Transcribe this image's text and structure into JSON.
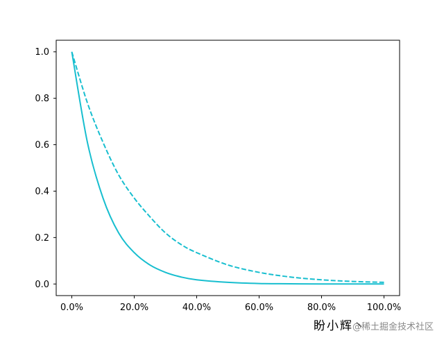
{
  "chart_data": {
    "type": "line",
    "title": "",
    "xlabel": "",
    "ylabel": "",
    "xlim": [
      -0.05,
      1.05
    ],
    "ylim": [
      -0.05,
      1.05
    ],
    "x_ticks": [
      0,
      0.2,
      0.4,
      0.6,
      0.8,
      1.0
    ],
    "x_tick_labels": [
      "0.0%",
      "20.0%",
      "40.0%",
      "60.0%",
      "80.0%",
      "100.0%"
    ],
    "y_ticks": [
      0,
      0.2,
      0.4,
      0.6,
      0.8,
      1.0
    ],
    "y_tick_labels": [
      "0.0",
      "0.2",
      "0.4",
      "0.6",
      "0.8",
      "1.0"
    ],
    "grid": false,
    "legend": "none",
    "color": "#17becf",
    "series": [
      {
        "style": "solid",
        "x": [
          0,
          0.05,
          0.1,
          0.15,
          0.2,
          0.25,
          0.3,
          0.35,
          0.4,
          0.5,
          0.6,
          0.7,
          0.8,
          0.9,
          1.0
        ],
        "y": [
          1.0,
          0.61,
          0.37,
          0.22,
          0.135,
          0.082,
          0.05,
          0.03,
          0.018,
          0.007,
          0.002,
          0.001,
          0.0,
          0.0,
          0.0
        ]
      },
      {
        "style": "dashed",
        "x": [
          0,
          0.05,
          0.1,
          0.15,
          0.2,
          0.25,
          0.3,
          0.35,
          0.4,
          0.5,
          0.6,
          0.7,
          0.8,
          0.9,
          1.0
        ],
        "y": [
          1.0,
          0.78,
          0.61,
          0.47,
          0.37,
          0.29,
          0.22,
          0.17,
          0.135,
          0.082,
          0.05,
          0.03,
          0.018,
          0.011,
          0.007
        ]
      }
    ]
  },
  "watermark": {
    "author": "盼小辉丶",
    "site": "@稀土掘金技术社区"
  }
}
